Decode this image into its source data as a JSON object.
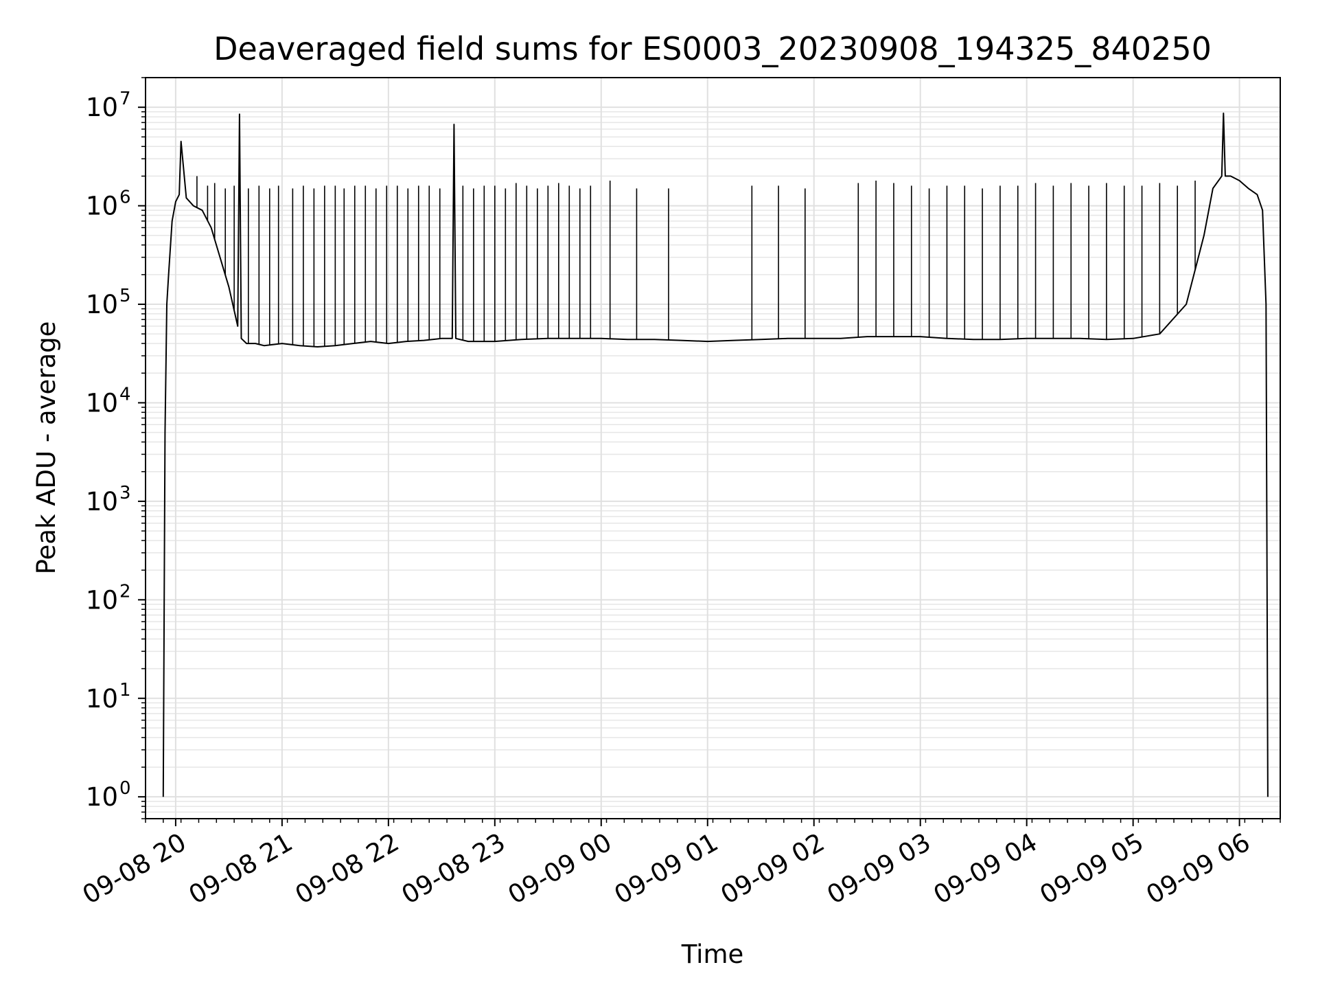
{
  "chart_data": {
    "type": "line",
    "title": "Deaveraged field sums for ES0003_20230908_194325_840250",
    "xlabel": "Time",
    "ylabel": "Peak ADU - average",
    "yscale": "log",
    "ylim": [
      0.6,
      20000000
    ],
    "xlim": [
      "2023-09-08 19:43",
      "2023-09-09 06:23"
    ],
    "grid": true,
    "line_color": "#000000",
    "x_ticks": [
      {
        "value": "2023-09-08 20:00",
        "label": "09-08 20"
      },
      {
        "value": "2023-09-08 21:00",
        "label": "09-08 21"
      },
      {
        "value": "2023-09-08 22:00",
        "label": "09-08 22"
      },
      {
        "value": "2023-09-08 23:00",
        "label": "09-08 23"
      },
      {
        "value": "2023-09-09 00:00",
        "label": "09-09 00"
      },
      {
        "value": "2023-09-09 01:00",
        "label": "09-09 01"
      },
      {
        "value": "2023-09-09 02:00",
        "label": "09-09 02"
      },
      {
        "value": "2023-09-09 03:00",
        "label": "09-09 03"
      },
      {
        "value": "2023-09-09 04:00",
        "label": "09-09 04"
      },
      {
        "value": "2023-09-09 05:00",
        "label": "09-09 05"
      },
      {
        "value": "2023-09-09 06:00",
        "label": "09-09 06"
      }
    ],
    "y_ticks": [
      {
        "value": 1,
        "base": "10",
        "exp": "0"
      },
      {
        "value": 10,
        "base": "10",
        "exp": "1"
      },
      {
        "value": 100,
        "base": "10",
        "exp": "2"
      },
      {
        "value": 1000,
        "base": "10",
        "exp": "3"
      },
      {
        "value": 10000,
        "base": "10",
        "exp": "4"
      },
      {
        "value": 100000,
        "base": "10",
        "exp": "5"
      },
      {
        "value": 1000000,
        "base": "10",
        "exp": "6"
      },
      {
        "value": 10000000,
        "base": "10",
        "exp": "7"
      }
    ],
    "series": [
      {
        "x": [
          "2023-09-08 19:53",
          "2023-09-08 19:54",
          "2023-09-08 19:55",
          "2023-09-08 19:56",
          "2023-09-08 19:58",
          "2023-09-08 20:00",
          "2023-09-08 20:02",
          "2023-09-08 20:03",
          "2023-09-08 20:06",
          "2023-09-08 20:10",
          "2023-09-08 20:15",
          "2023-09-08 20:20",
          "2023-09-08 20:25",
          "2023-09-08 20:30",
          "2023-09-08 20:35",
          "2023-09-08 20:36",
          "2023-09-08 20:37",
          "2023-09-08 20:40",
          "2023-09-08 20:45",
          "2023-09-08 20:50",
          "2023-09-08 21:00",
          "2023-09-08 21:10",
          "2023-09-08 21:20",
          "2023-09-08 21:30",
          "2023-09-08 21:40",
          "2023-09-08 21:50",
          "2023-09-08 22:00",
          "2023-09-08 22:10",
          "2023-09-08 22:20",
          "2023-09-08 22:30",
          "2023-09-08 22:36",
          "2023-09-08 22:37",
          "2023-09-08 22:38",
          "2023-09-08 22:45",
          "2023-09-08 23:00",
          "2023-09-08 23:15",
          "2023-09-08 23:30",
          "2023-09-08 23:45",
          "2023-09-09 00:00",
          "2023-09-09 00:15",
          "2023-09-09 00:30",
          "2023-09-09 00:45",
          "2023-09-09 01:00",
          "2023-09-09 01:15",
          "2023-09-09 01:30",
          "2023-09-09 01:45",
          "2023-09-09 02:00",
          "2023-09-09 02:15",
          "2023-09-09 02:30",
          "2023-09-09 02:45",
          "2023-09-09 03:00",
          "2023-09-09 03:15",
          "2023-09-09 03:30",
          "2023-09-09 03:45",
          "2023-09-09 04:00",
          "2023-09-09 04:15",
          "2023-09-09 04:30",
          "2023-09-09 04:45",
          "2023-09-09 05:00",
          "2023-09-09 05:15",
          "2023-09-09 05:30",
          "2023-09-09 05:40",
          "2023-09-09 05:45",
          "2023-09-09 05:50",
          "2023-09-09 05:51",
          "2023-09-09 05:52",
          "2023-09-09 05:55",
          "2023-09-09 06:00",
          "2023-09-09 06:05",
          "2023-09-09 06:10",
          "2023-09-09 06:13",
          "2023-09-09 06:15",
          "2023-09-09 06:16"
        ],
        "values": [
          1,
          5000,
          100000,
          200000,
          700000,
          1100000,
          1300000,
          4500000,
          1200000,
          1000000,
          900000,
          600000,
          300000,
          150000,
          60000,
          8500000,
          45000,
          40000,
          40000,
          38000,
          40000,
          38000,
          37000,
          38000,
          40000,
          42000,
          40000,
          42000,
          43000,
          45000,
          45000,
          6700000,
          45000,
          42000,
          42000,
          44000,
          45000,
          45000,
          45000,
          44000,
          44000,
          43000,
          42000,
          43000,
          44000,
          45000,
          45000,
          45000,
          47000,
          47000,
          47000,
          45000,
          44000,
          44000,
          45000,
          45000,
          45000,
          44000,
          45000,
          50000,
          100000,
          500000,
          1500000,
          2000000,
          8700000,
          2000000,
          2000000,
          1800000,
          1500000,
          1300000,
          900000,
          100000,
          1
        ]
      }
    ],
    "spikes": {
      "x": [
        "2023-09-08 20:12",
        "2023-09-08 20:18",
        "2023-09-08 20:22",
        "2023-09-08 20:28",
        "2023-09-08 20:33",
        "2023-09-08 20:41",
        "2023-09-08 20:47",
        "2023-09-08 20:53",
        "2023-09-08 20:58",
        "2023-09-08 21:06",
        "2023-09-08 21:12",
        "2023-09-08 21:18",
        "2023-09-08 21:24",
        "2023-09-08 21:30",
        "2023-09-08 21:35",
        "2023-09-08 21:41",
        "2023-09-08 21:47",
        "2023-09-08 21:53",
        "2023-09-08 21:59",
        "2023-09-08 22:05",
        "2023-09-08 22:11",
        "2023-09-08 22:17",
        "2023-09-08 22:23",
        "2023-09-08 22:29",
        "2023-09-08 22:42",
        "2023-09-08 22:48",
        "2023-09-08 22:54",
        "2023-09-08 23:00",
        "2023-09-08 23:06",
        "2023-09-08 23:12",
        "2023-09-08 23:18",
        "2023-09-08 23:24",
        "2023-09-08 23:30",
        "2023-09-08 23:36",
        "2023-09-08 23:42",
        "2023-09-08 23:48",
        "2023-09-08 23:54",
        "2023-09-09 00:05",
        "2023-09-09 00:20",
        "2023-09-09 00:38",
        "2023-09-09 01:25",
        "2023-09-09 01:40",
        "2023-09-09 01:55",
        "2023-09-09 02:25",
        "2023-09-09 02:35",
        "2023-09-09 02:45",
        "2023-09-09 02:55",
        "2023-09-09 03:05",
        "2023-09-09 03:15",
        "2023-09-09 03:25",
        "2023-09-09 03:35",
        "2023-09-09 03:45",
        "2023-09-09 03:55",
        "2023-09-09 04:05",
        "2023-09-09 04:15",
        "2023-09-09 04:25",
        "2023-09-09 04:35",
        "2023-09-09 04:45",
        "2023-09-09 04:55",
        "2023-09-09 05:05",
        "2023-09-09 05:15",
        "2023-09-09 05:25",
        "2023-09-09 05:35"
      ],
      "values": [
        2000000,
        1600000,
        1700000,
        1500000,
        1600000,
        1500000,
        1600000,
        1500000,
        1600000,
        1500000,
        1600000,
        1500000,
        1600000,
        1600000,
        1500000,
        1600000,
        1600000,
        1500000,
        1600000,
        1600000,
        1500000,
        1600000,
        1600000,
        1500000,
        1600000,
        1500000,
        1600000,
        1600000,
        1500000,
        1700000,
        1600000,
        1500000,
        1600000,
        1700000,
        1600000,
        1500000,
        1600000,
        1800000,
        1500000,
        1500000,
        1600000,
        1600000,
        1500000,
        1700000,
        1800000,
        1700000,
        1600000,
        1500000,
        1600000,
        1600000,
        1500000,
        1600000,
        1600000,
        1700000,
        1600000,
        1700000,
        1600000,
        1700000,
        1600000,
        1600000,
        1700000,
        1600000,
        1800000
      ]
    }
  }
}
